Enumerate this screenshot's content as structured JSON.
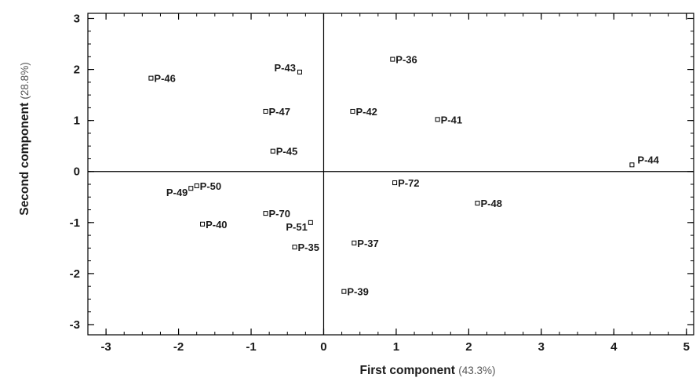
{
  "chart_data": {
    "type": "scatter",
    "xlabel": "First component",
    "xlabel_note": "(43.3%)",
    "ylabel": "Second component",
    "ylabel_note": "(28.8%)",
    "xlim": [
      -3.25,
      5.1
    ],
    "ylim": [
      -3.2,
      3.1
    ],
    "xticks": [
      -3,
      -2,
      -1,
      0,
      1,
      2,
      3,
      4,
      5
    ],
    "yticks": [
      -3,
      -2,
      -1,
      0,
      1,
      2,
      3
    ],
    "zero_lines": true,
    "grid": false,
    "marker": "open-square",
    "points": [
      {
        "label": "P-46",
        "x": -2.38,
        "y": 1.83,
        "label_pos": "right"
      },
      {
        "label": "P-43",
        "x": -0.33,
        "y": 1.95,
        "label_pos": "left"
      },
      {
        "label": "P-36",
        "x": 0.95,
        "y": 2.2,
        "label_pos": "right"
      },
      {
        "label": "P-47",
        "x": -0.8,
        "y": 1.18,
        "label_pos": "right"
      },
      {
        "label": "P-42",
        "x": 0.4,
        "y": 1.18,
        "label_pos": "right"
      },
      {
        "label": "P-41",
        "x": 1.57,
        "y": 1.02,
        "label_pos": "right"
      },
      {
        "label": "P-45",
        "x": -0.7,
        "y": 0.4,
        "label_pos": "right"
      },
      {
        "label": "P-44",
        "x": 4.25,
        "y": 0.13,
        "label_pos": "upper-right"
      },
      {
        "label": "P-72",
        "x": 0.98,
        "y": -0.22,
        "label_pos": "right"
      },
      {
        "label": "P-50",
        "x": -1.75,
        "y": -0.28,
        "label_pos": "right"
      },
      {
        "label": "P-49",
        "x": -1.83,
        "y": -0.33,
        "label_pos": "lower-left"
      },
      {
        "label": "P-70",
        "x": -0.8,
        "y": -0.82,
        "label_pos": "right"
      },
      {
        "label": "P-48",
        "x": 2.12,
        "y": -0.62,
        "label_pos": "right"
      },
      {
        "label": "P-40",
        "x": -1.67,
        "y": -1.03,
        "label_pos": "right"
      },
      {
        "label": "P-51",
        "x": -0.18,
        "y": -1.0,
        "label_pos": "lower-left"
      },
      {
        "label": "P-35",
        "x": -0.4,
        "y": -1.48,
        "label_pos": "right"
      },
      {
        "label": "P-37",
        "x": 0.42,
        "y": -1.4,
        "label_pos": "right"
      },
      {
        "label": "P-39",
        "x": 0.28,
        "y": -2.35,
        "label_pos": "right"
      }
    ]
  }
}
